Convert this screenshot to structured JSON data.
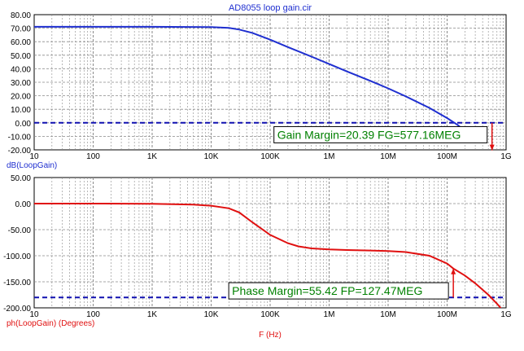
{
  "title": "AD8055 loop gain.cir",
  "x_axis_label": "F (Hz)",
  "colors": {
    "gain": "#1f2fd0",
    "phase": "#e01010",
    "grid": "#8a8a8a",
    "ref_line": "#1010b0",
    "annotation_text": "#008000",
    "annotation_box": "#000000",
    "arrow": "#e01010"
  },
  "chart_data": [
    {
      "type": "line",
      "ylabel": "dB(LoopGain)",
      "xscale": "log",
      "xlim": [
        10,
        1000000000
      ],
      "ylim": [
        -20,
        80
      ],
      "x_ticks": [
        10,
        100,
        1000,
        10000,
        100000,
        1000000,
        10000000,
        100000000,
        1000000000
      ],
      "x_tick_labels": [
        "10",
        "100",
        "1K",
        "10K",
        "100K",
        "1M",
        "10M",
        "100M",
        "1G"
      ],
      "y_ticks": [
        80,
        70,
        60,
        50,
        40,
        30,
        20,
        10,
        0,
        -10,
        -20
      ],
      "y_tick_labels": [
        "80.00",
        "70.00",
        "60.00",
        "50.00",
        "40.00",
        "30.00",
        "20.00",
        "10.00",
        "0.00",
        "-10.00",
        "-20.00"
      ],
      "grid": true,
      "series": [
        {
          "x": [
            10,
            100,
            1000,
            10000,
            20000,
            30000,
            50000,
            100000,
            200000,
            500000,
            1000000,
            2000000,
            5000000,
            10000000,
            20000000,
            50000000,
            100000000,
            150000000,
            200000000
          ],
          "y": [
            71,
            71,
            71,
            70.8,
            70.2,
            69,
            66.5,
            61.5,
            56,
            49,
            43.5,
            38,
            31,
            25.5,
            19.5,
            11,
            3.5,
            -1.5,
            -6
          ]
        }
      ],
      "reference_line": 0,
      "annotation": {
        "text": "Gain Margin=20.39 FG=577.16MEG",
        "x": 577160000,
        "y_from": 0,
        "y_to": -20.39
      }
    },
    {
      "type": "line",
      "ylabel": "ph(LoopGain) (Degrees)",
      "xscale": "log",
      "xlim": [
        10,
        1000000000
      ],
      "ylim": [
        -200,
        50
      ],
      "x_ticks": [
        10,
        100,
        1000,
        10000,
        100000,
        1000000,
        10000000,
        100000000,
        1000000000
      ],
      "x_tick_labels": [
        "10",
        "100",
        "1K",
        "10K",
        "100K",
        "1M",
        "10M",
        "100M",
        "1G"
      ],
      "y_ticks": [
        50,
        0,
        -50,
        -100,
        -150,
        -200
      ],
      "y_tick_labels": [
        "50.00",
        "0.00",
        "-50.00",
        "-100.00",
        "-150.00",
        "-200.00"
      ],
      "grid": true,
      "series": [
        {
          "x": [
            10,
            100,
            1000,
            5000,
            10000,
            20000,
            30000,
            50000,
            100000,
            200000,
            300000,
            500000,
            1000000,
            2000000,
            5000000,
            10000000,
            20000000,
            50000000,
            100000000,
            127470000,
            200000000,
            300000000,
            500000000,
            700000000,
            1000000000
          ],
          "y": [
            0,
            0,
            -0.5,
            -2,
            -4,
            -9,
            -17,
            -36,
            -60,
            -76,
            -82,
            -86,
            -88,
            -89,
            -90,
            -91,
            -93,
            -100,
            -115,
            -124.6,
            -138,
            -153,
            -175,
            -192,
            -212
          ]
        }
      ],
      "reference_line": -180,
      "annotation": {
        "text": "Phase Margin=55.42 FP=127.47MEG",
        "x": 127470000,
        "y_from": -180,
        "y_to": -124.58
      }
    }
  ]
}
